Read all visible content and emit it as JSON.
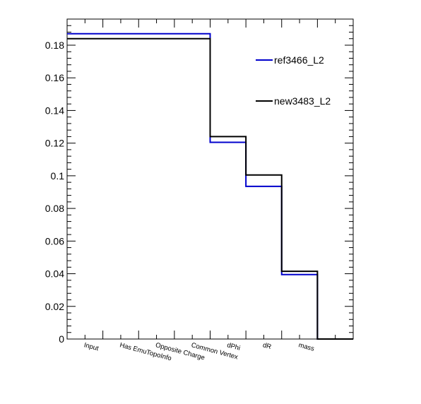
{
  "chart_data": {
    "type": "line",
    "title": "",
    "xlabel": "",
    "ylabel": "",
    "categories": [
      "Input",
      "Has EmuTopoInfo",
      "Opposite Charge",
      "Common Vertex",
      "dPhi",
      "dR",
      "mass"
    ],
    "ylim": [
      0,
      0.196
    ],
    "yticks": [
      "0",
      "0.02",
      "0.04",
      "0.06",
      "0.08",
      "0.1",
      "0.12",
      "0.14",
      "0.16",
      "0.18"
    ],
    "grid": false,
    "legend_position": "top-right",
    "series": [
      {
        "name": "ref3466_L2",
        "color": "#0000cc",
        "bins": [
          {
            "x0": 0,
            "x1": 4,
            "y": 0.187
          },
          {
            "x0": 4,
            "x1": 5,
            "y": 0.1205
          },
          {
            "x0": 5,
            "x1": 6,
            "y": 0.0935
          },
          {
            "x0": 6,
            "x1": 7,
            "y": 0.0395
          },
          {
            "x0": 7,
            "x1": 8,
            "y": 0.0
          }
        ]
      },
      {
        "name": "new3483_L2",
        "color": "#000000",
        "bins": [
          {
            "x0": 0,
            "x1": 4,
            "y": 0.184
          },
          {
            "x0": 4,
            "x1": 5,
            "y": 0.124
          },
          {
            "x0": 5,
            "x1": 6,
            "y": 0.1005
          },
          {
            "x0": 6,
            "x1": 7,
            "y": 0.0415
          },
          {
            "x0": 7,
            "x1": 8,
            "y": 0.0
          }
        ]
      }
    ]
  }
}
